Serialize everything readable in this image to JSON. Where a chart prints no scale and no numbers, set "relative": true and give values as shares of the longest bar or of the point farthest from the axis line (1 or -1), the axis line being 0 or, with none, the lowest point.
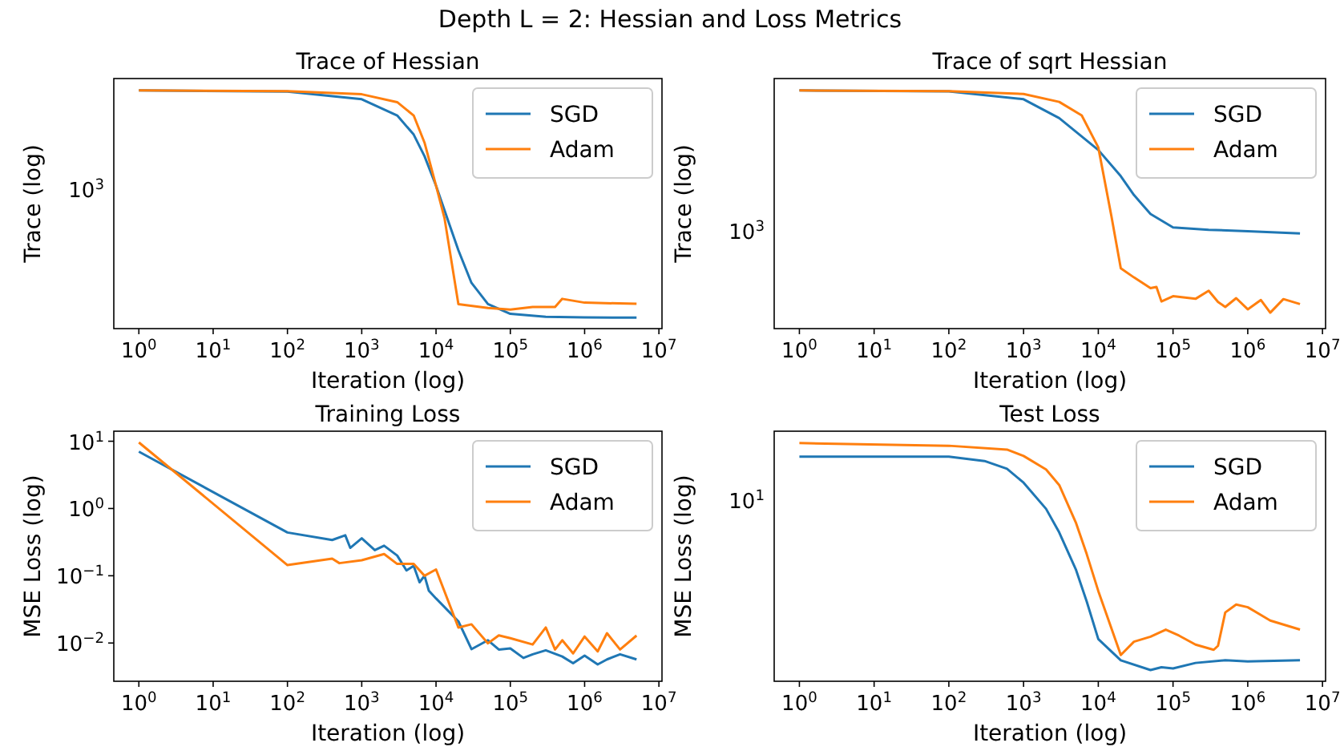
{
  "chart_data": [
    {
      "type": "other",
      "title": "Depth L = 2: Hessian and Loss Metrics"
    },
    {
      "type": "line",
      "title": "Trace of Hessian",
      "xlabel": "Iteration (log)",
      "ylabel": "Trace (log)",
      "log": "x",
      "relative": true,
      "grid": false,
      "legend": "top right",
      "xlim": [
        0.46,
        11000000
      ],
      "annotations": [
        "10$^{3}$"
      ],
      "xticks": [
        {
          "value": 1,
          "label": "10$^{0}$"
        },
        {
          "value": 10,
          "label": "10$^{1}$"
        },
        {
          "value": 100,
          "label": "10$^{2}$"
        },
        {
          "value": 1000,
          "label": "10$^{3}$"
        },
        {
          "value": 10000,
          "label": "10$^{4}$"
        },
        {
          "value": 100000,
          "label": "10$^{5}$"
        },
        {
          "value": 1000000,
          "label": "10$^{6}$"
        },
        {
          "value": 10000000,
          "label": "10$^{7}$"
        }
      ],
      "series": [
        {
          "name": "SGD",
          "color": "#1f77b4",
          "x": [
            1,
            100,
            1000,
            3000,
            5000,
            7000,
            10000,
            15000,
            20000,
            30000,
            50000,
            100000,
            300000,
            1000000,
            5000000
          ],
          "values": [
            1,
            0.995,
            0.963,
            0.895,
            0.815,
            0.724,
            0.6,
            0.441,
            0.329,
            0.192,
            0.103,
            0.062,
            0.05,
            0.047,
            0.046
          ]
        },
        {
          "name": "Adam",
          "color": "#ff7f0e",
          "x": [
            1,
            100,
            1000,
            3000,
            5000,
            7000,
            10000,
            13000,
            20000,
            50000,
            100000,
            200000,
            400000,
            500000,
            1000000,
            5000000
          ],
          "values": [
            1,
            0.997,
            0.984,
            0.951,
            0.895,
            0.781,
            0.6,
            0.464,
            0.103,
            0.087,
            0.08,
            0.091,
            0.091,
            0.125,
            0.109,
            0.104
          ]
        }
      ]
    },
    {
      "type": "line",
      "title": "Trace of sqrt Hessian",
      "xlabel": "Iteration (log)",
      "ylabel": "Trace (log)",
      "log": "x",
      "relative": true,
      "grid": false,
      "legend": "top right",
      "xlim": [
        0.46,
        11000000
      ],
      "annotations": [
        "10$^{3}$"
      ],
      "xticks": [
        {
          "value": 1,
          "label": "10$^{0}$"
        },
        {
          "value": 10,
          "label": "10$^{1}$"
        },
        {
          "value": 100,
          "label": "10$^{2}$"
        },
        {
          "value": 1000,
          "label": "10$^{3}$"
        },
        {
          "value": 10000,
          "label": "10$^{4}$"
        },
        {
          "value": 100000,
          "label": "10$^{5}$"
        },
        {
          "value": 1000000,
          "label": "10$^{6}$"
        },
        {
          "value": 10000000,
          "label": "10$^{7}$"
        }
      ],
      "series": [
        {
          "name": "SGD",
          "color": "#1f77b4",
          "x": [
            1,
            100,
            1000,
            3000,
            10000,
            20000,
            30000,
            50000,
            100000,
            300000,
            1000000,
            5000000
          ],
          "values": [
            1,
            0.996,
            0.963,
            0.884,
            0.75,
            0.64,
            0.561,
            0.481,
            0.425,
            0.415,
            0.409,
            0.4
          ]
        },
        {
          "name": "Adam",
          "color": "#ff7f0e",
          "x": [
            1,
            100,
            1000,
            3000,
            6000,
            10000,
            15000,
            20000,
            30000,
            50000,
            60000,
            70000,
            100000,
            200000,
            300000,
            400000,
            500000,
            700000,
            1000000,
            1500000,
            2000000,
            3000000,
            5000000
          ],
          "values": [
            1,
            0.997,
            0.985,
            0.952,
            0.895,
            0.761,
            0.471,
            0.253,
            0.215,
            0.17,
            0.175,
            0.114,
            0.136,
            0.125,
            0.159,
            0.112,
            0.091,
            0.128,
            0.081,
            0.12,
            0.067,
            0.124,
            0.103
          ]
        }
      ]
    },
    {
      "type": "line",
      "title": "Training Loss",
      "xlabel": "Iteration (log)",
      "ylabel": "MSE Loss (log)",
      "log": "xy",
      "grid": false,
      "legend": "top right",
      "xlim": [
        0.46,
        11000000
      ],
      "ylim": [
        0.0027,
        14.1
      ],
      "xticks": [
        {
          "value": 1,
          "label": "10$^{0}$"
        },
        {
          "value": 10,
          "label": "10$^{1}$"
        },
        {
          "value": 100,
          "label": "10$^{2}$"
        },
        {
          "value": 1000,
          "label": "10$^{3}$"
        },
        {
          "value": 10000,
          "label": "10$^{4}$"
        },
        {
          "value": 100000,
          "label": "10$^{5}$"
        },
        {
          "value": 1000000,
          "label": "10$^{6}$"
        },
        {
          "value": 10000000,
          "label": "10$^{7}$"
        }
      ],
      "yticks": [
        {
          "value": 0.01,
          "label": "10$^{−2}$"
        },
        {
          "value": 0.1,
          "label": "10$^{−1}$"
        },
        {
          "value": 1,
          "label": "10$^{0}$"
        },
        {
          "value": 10,
          "label": "10$^{1}$"
        }
      ],
      "series": [
        {
          "name": "SGD",
          "color": "#1f77b4",
          "x": [
            1,
            100,
            400,
            600,
            700,
            1000,
            1500,
            2000,
            3000,
            4000,
            5000,
            6000,
            7000,
            8000,
            10000,
            20000,
            30000,
            50000,
            70000,
            100000,
            150000,
            200000,
            300000,
            500000,
            700000,
            1000000,
            1500000,
            2000000,
            3000000,
            5000000
          ],
          "values": [
            7.0,
            0.44,
            0.34,
            0.4,
            0.26,
            0.36,
            0.24,
            0.28,
            0.2,
            0.12,
            0.14,
            0.08,
            0.1,
            0.06,
            0.046,
            0.021,
            0.0081,
            0.011,
            0.008,
            0.0083,
            0.006,
            0.0068,
            0.0078,
            0.0063,
            0.005,
            0.0065,
            0.0048,
            0.0057,
            0.0068,
            0.0057
          ]
        },
        {
          "name": "Adam",
          "color": "#ff7f0e",
          "x": [
            1,
            100,
            400,
            500,
            1000,
            2000,
            3000,
            5000,
            7000,
            10000,
            20000,
            30000,
            50000,
            70000,
            100000,
            200000,
            300000,
            400000,
            500000,
            700000,
            1000000,
            1500000,
            2000000,
            3000000,
            5000000
          ],
          "values": [
            9.6,
            0.144,
            0.18,
            0.154,
            0.17,
            0.21,
            0.15,
            0.15,
            0.1,
            0.124,
            0.017,
            0.019,
            0.0099,
            0.013,
            0.0118,
            0.0095,
            0.017,
            0.008,
            0.011,
            0.007,
            0.0125,
            0.0075,
            0.014,
            0.008,
            0.0129
          ]
        }
      ]
    },
    {
      "type": "line",
      "title": "Test Loss",
      "xlabel": "Iteration (log)",
      "ylabel": "MSE Loss (log)",
      "log": "x",
      "relative": true,
      "grid": false,
      "legend": "top right",
      "xlim": [
        0.46,
        11000000
      ],
      "annotations": [
        "10$^{1}$"
      ],
      "xticks": [
        {
          "value": 1,
          "label": "10$^{0}$"
        },
        {
          "value": 10,
          "label": "10$^{1}$"
        },
        {
          "value": 100,
          "label": "10$^{2}$"
        },
        {
          "value": 1000,
          "label": "10$^{3}$"
        },
        {
          "value": 10000,
          "label": "10$^{4}$"
        },
        {
          "value": 100000,
          "label": "10$^{5}$"
        },
        {
          "value": 1000000,
          "label": "10$^{6}$"
        },
        {
          "value": 10000000,
          "label": "10$^{7}$"
        }
      ],
      "series": [
        {
          "name": "SGD",
          "color": "#1f77b4",
          "x": [
            1,
            100,
            300,
            600,
            1000,
            2000,
            3000,
            5000,
            7000,
            10000,
            20000,
            50000,
            70000,
            100000,
            200000,
            500000,
            1000000,
            5000000
          ],
          "values": [
            0.943,
            0.943,
            0.925,
            0.892,
            0.834,
            0.724,
            0.625,
            0.47,
            0.335,
            0.177,
            0.088,
            0.047,
            0.059,
            0.054,
            0.077,
            0.088,
            0.083,
            0.088
          ]
        },
        {
          "name": "Adam",
          "color": "#ff7f0e",
          "x": [
            1,
            100,
            600,
            1000,
            2000,
            3000,
            5000,
            7000,
            10000,
            20000,
            30000,
            50000,
            80000,
            120000,
            200000,
            350000,
            400000,
            500000,
            700000,
            1000000,
            2000000,
            5000000
          ],
          "values": [
            1,
            0.989,
            0.973,
            0.946,
            0.889,
            0.824,
            0.667,
            0.534,
            0.379,
            0.11,
            0.166,
            0.187,
            0.217,
            0.192,
            0.154,
            0.132,
            0.149,
            0.289,
            0.322,
            0.311,
            0.255,
            0.217
          ]
        }
      ]
    }
  ]
}
